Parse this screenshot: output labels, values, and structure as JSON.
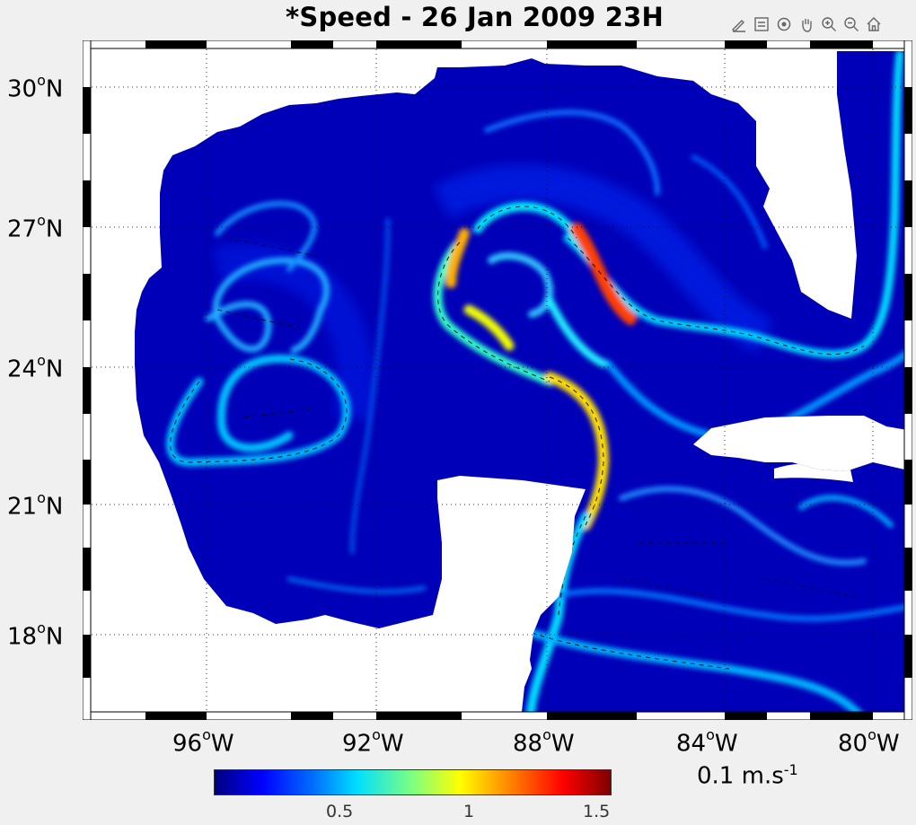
{
  "title": "*Speed - 26 Jan 2009 23H",
  "toolbar": [
    "edit-plot-icon",
    "legend-icon",
    "rotate-icon",
    "pan-icon",
    "zoom-in-icon",
    "zoom-out-icon",
    "home-icon"
  ],
  "map": {
    "lat_labels": [
      {
        "deg": "30",
        "hemi": "N"
      },
      {
        "deg": "27",
        "hemi": "N"
      },
      {
        "deg": "24",
        "hemi": "N"
      },
      {
        "deg": "21",
        "hemi": "N"
      },
      {
        "deg": "18",
        "hemi": "N"
      }
    ],
    "lon_labels": [
      {
        "deg": "96",
        "hemi": "W"
      },
      {
        "deg": "92",
        "hemi": "W"
      },
      {
        "deg": "88",
        "hemi": "W"
      },
      {
        "deg": "84",
        "hemi": "W"
      },
      {
        "deg": "80",
        "hemi": "W"
      }
    ],
    "degree_symbol": "o"
  },
  "colorbar": {
    "ticks": [
      "0.5",
      "1",
      "1.5"
    ],
    "colors": [
      "#00007f",
      "#0000ff",
      "#0070ff",
      "#00dfff",
      "#7fff80",
      "#ffff00",
      "#ff8000",
      "#ff0000",
      "#7f0000"
    ]
  },
  "vector_scale": {
    "value": "0.1 m.s",
    "exponent": "-1"
  }
}
